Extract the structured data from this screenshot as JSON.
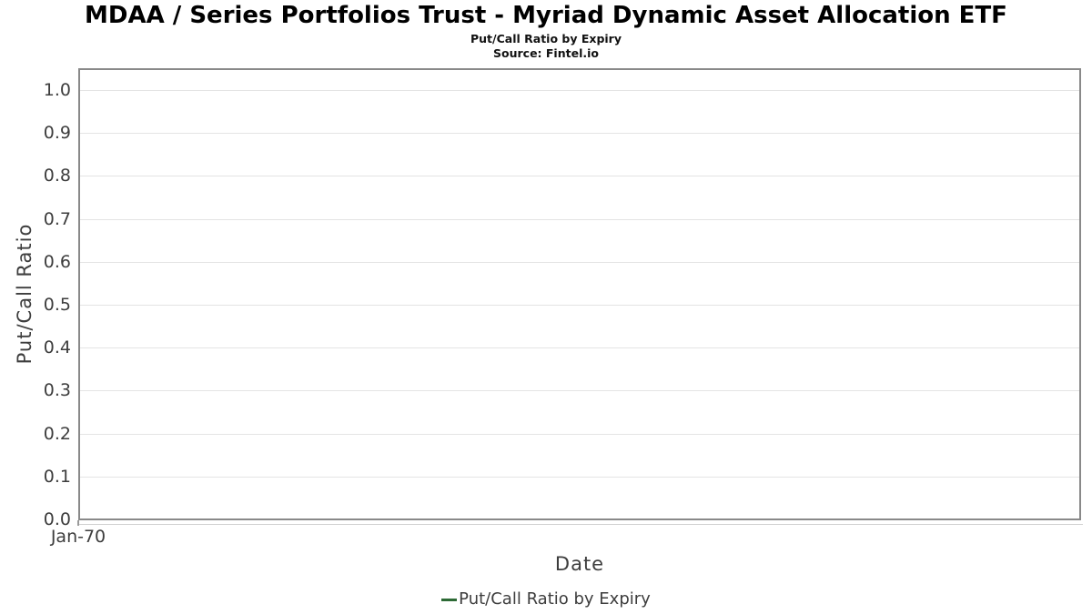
{
  "header": {
    "title": "MDAA / Series Portfolios Trust - Myriad Dynamic Asset Allocation ETF",
    "subtitle": "Put/Call Ratio by Expiry",
    "source": "Source: Fintel.io"
  },
  "chart_data": {
    "type": "line",
    "title": "MDAA / Series Portfolios Trust - Myriad Dynamic Asset Allocation ETF",
    "subtitle": "Put/Call Ratio by Expiry",
    "xlabel": "Date",
    "ylabel": "Put/Call Ratio",
    "x_ticks": [
      "Jan-70"
    ],
    "y_ticks": [
      "0.0",
      "0.1",
      "0.2",
      "0.3",
      "0.4",
      "0.5",
      "0.6",
      "0.7",
      "0.8",
      "0.9",
      "1.0"
    ],
    "ylim": [
      0,
      1.05
    ],
    "grid": true,
    "legend_position": "bottom",
    "series": [
      {
        "name": "Put/Call Ratio by Expiry",
        "color": "#2d6a35",
        "x": [],
        "values": []
      }
    ]
  },
  "legend": {
    "label": "Put/Call Ratio by Expiry",
    "marker_color": "#2d6a35"
  },
  "colors": {
    "background": "#ffffff",
    "plot_border": "#898989",
    "gridline": "#e4e4e4",
    "axis_line": "#d0d0d0",
    "tick_text": "#3d3d3d",
    "title_text": "#000000"
  }
}
